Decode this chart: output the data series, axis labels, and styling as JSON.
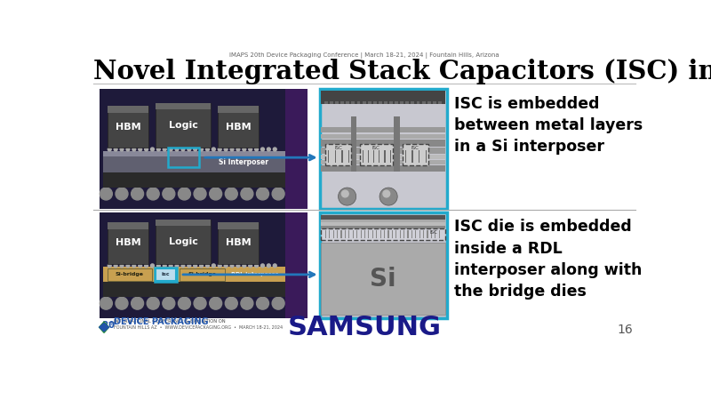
{
  "title": "Novel Integrated Stack Capacitors (ISC) integration",
  "subtitle": "IMAPS 20th Device Packaging Conference | March 18-21, 2024 | Fountain Hills, Arizona",
  "text1": "ISC is embedded\nbetween metal layers\nin a Si interposer",
  "text2": "ISC die is embedded\ninside a RDL\ninterposer along with\nthe bridge dies",
  "samsung_text": "SAMSUNG",
  "page_num": "16",
  "bg_color": "#ffffff",
  "title_color": "#000000",
  "subtitle_color": "#666666",
  "text_color": "#000000",
  "cyan_border": "#22aacc",
  "arrow_color": "#2277bb",
  "dark_bg": "#1e1a3a",
  "chip_dark": "#3a3a3a",
  "chip_mid": "#555555",
  "interposer_color": "#666677",
  "rdl_gold": "#c8a050",
  "si_bridge_gold": "#c8a050",
  "isc_cyan_fill": "#88ccdd",
  "zoom_bg": "#d0d0d8",
  "zoom_layer1": "#888888",
  "zoom_layer2": "#aaaaaa",
  "zoom_layer3": "#bbbbbb",
  "zoom_dark": "#555555",
  "zoom_si": "#aaaaaa",
  "ball_color": "#888888"
}
